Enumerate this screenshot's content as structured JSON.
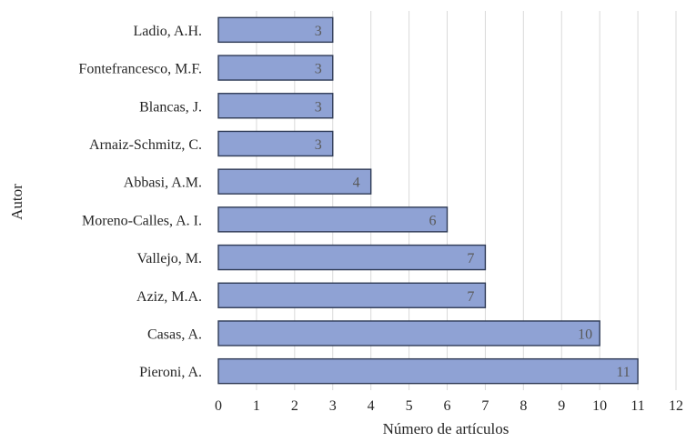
{
  "chart_data": {
    "type": "bar",
    "orientation": "horizontal",
    "categories": [
      "Pieroni, A.",
      "Casas, A.",
      "Aziz, M.A.",
      "Vallejo, M.",
      "Moreno-Calles, A. I.",
      "Abbasi, A.M.",
      "Arnaiz-Schmitz, C.",
      "Blancas, J.",
      "Fontefrancesco, M.F.",
      "Ladio, A.H."
    ],
    "values": [
      11,
      10,
      7,
      7,
      6,
      4,
      3,
      3,
      3,
      3
    ],
    "xlabel": "Número de artículos",
    "ylabel": "Autor",
    "xlim": [
      0,
      12
    ],
    "xticks": [
      0,
      1,
      2,
      3,
      4,
      5,
      6,
      7,
      8,
      9,
      10,
      11,
      12
    ],
    "grid": true,
    "bar_color": "#8fa2d4",
    "bar_border_color": "#2f3b56",
    "data_labels": true
  }
}
